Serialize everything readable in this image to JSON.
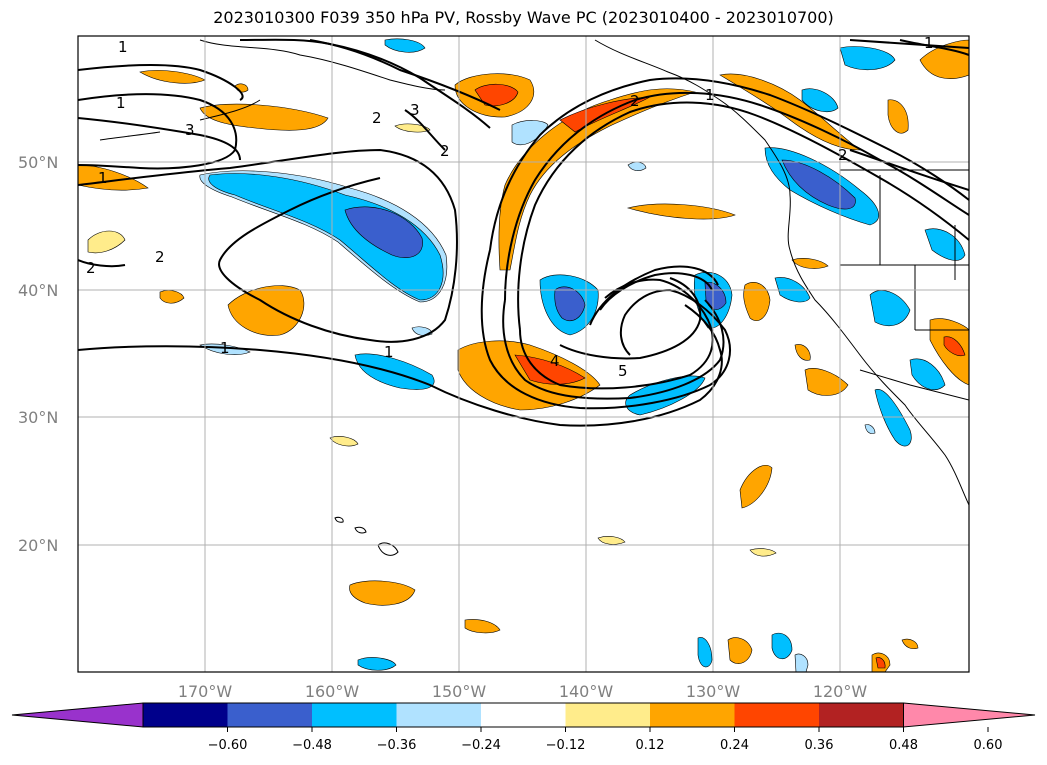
{
  "title": "2023010300 F039 350 hPa PV, Rossby Wave PC (2023010400 - 2023010700)",
  "lat_labels": [
    "50°N",
    "40°N",
    "30°N",
    "20°N"
  ],
  "lon_labels": [
    "170°W",
    "160°W",
    "150°W",
    "140°W",
    "130°W",
    "120°W"
  ],
  "contour_labels": [
    "1",
    "2",
    "3",
    "2",
    "2",
    "1",
    "1",
    "2",
    "1",
    "2",
    "1",
    "3",
    "4",
    "5",
    "2",
    "1"
  ],
  "colorbar": {
    "ticks": [
      "−0.60",
      "−0.48",
      "−0.36",
      "−0.24",
      "−0.12",
      "0.12",
      "0.24",
      "0.36",
      "0.48",
      "0.60"
    ],
    "colors": [
      "#9932cc",
      "#00008b",
      "#3a5fcd",
      "#00bfff",
      "#b0e2ff",
      "#ffffff",
      "#ffec8b",
      "#ffa500",
      "#ff4500",
      "#b22222",
      "#ff88aa"
    ]
  }
}
